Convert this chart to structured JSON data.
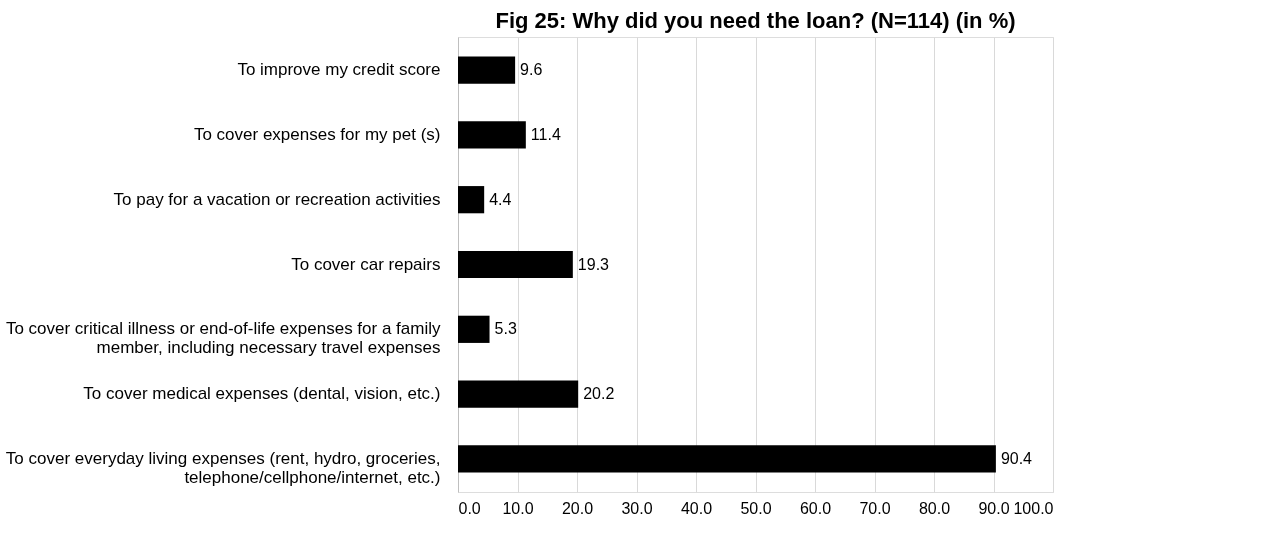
{
  "chart_data": {
    "type": "bar",
    "orientation": "horizontal",
    "title": "Fig 25: Why did you need the loan? (N=114) (in %)",
    "categories": [
      "To improve my credit score",
      "To cover expenses for my pet (s)",
      "To pay for a vacation or recreation activities",
      "To cover car repairs",
      "To cover critical illness or end-of-life expenses for a family member, including necessary travel expenses",
      "To cover medical expenses (dental, vision, etc.)",
      "To cover everyday living expenses (rent, hydro, groceries, telephone/cellphone/internet, etc.)"
    ],
    "values": [
      9.6,
      11.4,
      4.4,
      19.3,
      5.3,
      20.2,
      90.4
    ],
    "color": "#000000",
    "xlim": [
      0,
      100
    ],
    "xticks": [
      {
        "value": 0,
        "label": "0.0"
      },
      {
        "value": 10,
        "label": "10.0"
      },
      {
        "value": 20,
        "label": "20.0"
      },
      {
        "value": 30,
        "label": "30.0"
      },
      {
        "value": 40,
        "label": "40.0"
      },
      {
        "value": 50,
        "label": "50.0"
      },
      {
        "value": 60,
        "label": "60.0"
      },
      {
        "value": 70,
        "label": "70.0"
      },
      {
        "value": 80,
        "label": "80.0"
      },
      {
        "value": 90,
        "label": "90.0"
      },
      {
        "value": 100,
        "label": "100.0"
      }
    ],
    "grid": "x",
    "data_labels": true
  }
}
